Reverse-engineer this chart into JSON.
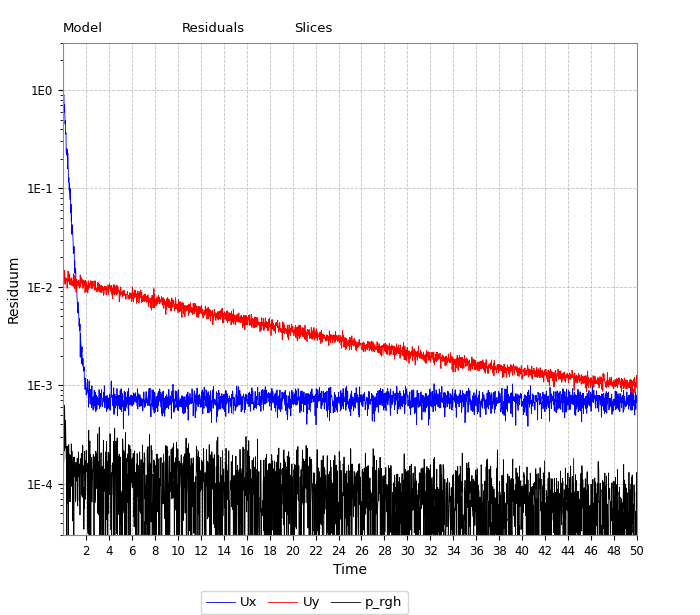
{
  "title": "",
  "xlabel": "Time",
  "ylabel": "Residuum",
  "xlim": [
    0,
    50
  ],
  "ylim_log": [
    3e-05,
    3.0
  ],
  "yticks": [
    0.0001,
    0.001,
    0.01,
    0.1,
    1.0
  ],
  "ytick_labels": [
    "1E-4",
    "1E-3",
    "1E-2",
    "1E-1",
    "1E0"
  ],
  "xticks": [
    2,
    4,
    6,
    8,
    10,
    12,
    14,
    16,
    18,
    20,
    22,
    24,
    26,
    28,
    30,
    32,
    34,
    36,
    38,
    40,
    42,
    44,
    46,
    48,
    50
  ],
  "color_ux": "#0000ff",
  "color_uy": "#ff0000",
  "color_p": "#000000",
  "legend_labels": [
    "Ux",
    "Uy",
    "p_rgh"
  ],
  "background_color": "#ffffff",
  "grid_color": "#bbbbbb",
  "tab_labels": [
    "Model",
    "Residuals",
    "Slices"
  ],
  "n_points": 2500,
  "seed": 42
}
